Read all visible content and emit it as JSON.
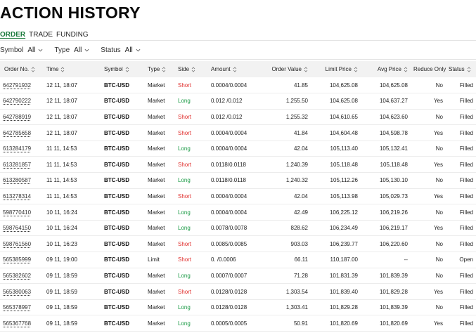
{
  "title": "ACTION HISTORY",
  "tabs": [
    {
      "label": "ORDER",
      "active": true
    },
    {
      "label": "TRADE",
      "active": false
    },
    {
      "label": "FUNDING",
      "active": false
    }
  ],
  "filters": [
    {
      "label": "Symbol",
      "value": "All"
    },
    {
      "label": "Type",
      "value": "All"
    },
    {
      "label": "Status",
      "value": "All"
    }
  ],
  "columns": {
    "order_no": "Order No.",
    "time": "Time",
    "symbol": "Symbol",
    "type": "Type",
    "side": "Side",
    "amount": "Amount",
    "order_value": "Order Value",
    "limit_price": "Limit Price",
    "avg_price": "Avg Price",
    "reduce_only": "Reduce Only",
    "status": "Status"
  },
  "colors": {
    "accent": "#1a7a3c",
    "long": "#1a9a45",
    "short": "#e0312f"
  },
  "rows": [
    {
      "order_no": "642791932",
      "time": "12 11, 18:07",
      "symbol": "BTC-USD",
      "type": "Market",
      "side": "Short",
      "amount": "0.0004/0.0004",
      "order_value": "41.85",
      "limit_price": "104,625.08",
      "avg_price": "104,625.08",
      "reduce_only": "No",
      "status": "Filled"
    },
    {
      "order_no": "642790222",
      "time": "12 11, 18:07",
      "symbol": "BTC-USD",
      "type": "Market",
      "side": "Long",
      "amount": "0.012 /0.012",
      "order_value": "1,255.50",
      "limit_price": "104,625.08",
      "avg_price": "104,637.27",
      "reduce_only": "Yes",
      "status": "Filled"
    },
    {
      "order_no": "642788919",
      "time": "12 11, 18:07",
      "symbol": "BTC-USD",
      "type": "Market",
      "side": "Short",
      "amount": "0.012 /0.012",
      "order_value": "1,255.32",
      "limit_price": "104,610.65",
      "avg_price": "104,623.60",
      "reduce_only": "No",
      "status": "Filled"
    },
    {
      "order_no": "642785658",
      "time": "12 11, 18:07",
      "symbol": "BTC-USD",
      "type": "Market",
      "side": "Short",
      "amount": "0.0004/0.0004",
      "order_value": "41.84",
      "limit_price": "104,604.48",
      "avg_price": "104,598.78",
      "reduce_only": "Yes",
      "status": "Filled"
    },
    {
      "order_no": "613284179",
      "time": "11 11, 14:53",
      "symbol": "BTC-USD",
      "type": "Market",
      "side": "Long",
      "amount": "0.0004/0.0004",
      "order_value": "42.04",
      "limit_price": "105,113.40",
      "avg_price": "105,132.41",
      "reduce_only": "No",
      "status": "Filled"
    },
    {
      "order_no": "613281857",
      "time": "11 11, 14:53",
      "symbol": "BTC-USD",
      "type": "Market",
      "side": "Short",
      "amount": "0.0118/0.0118",
      "order_value": "1,240.39",
      "limit_price": "105,118.48",
      "avg_price": "105,118.48",
      "reduce_only": "Yes",
      "status": "Filled"
    },
    {
      "order_no": "613280587",
      "time": "11 11, 14:53",
      "symbol": "BTC-USD",
      "type": "Market",
      "side": "Long",
      "amount": "0.0118/0.0118",
      "order_value": "1,240.32",
      "limit_price": "105,112.26",
      "avg_price": "105,130.10",
      "reduce_only": "No",
      "status": "Filled"
    },
    {
      "order_no": "613278314",
      "time": "11 11, 14:53",
      "symbol": "BTC-USD",
      "type": "Market",
      "side": "Short",
      "amount": "0.0004/0.0004",
      "order_value": "42.04",
      "limit_price": "105,113.98",
      "avg_price": "105,029.73",
      "reduce_only": "Yes",
      "status": "Filled"
    },
    {
      "order_no": "598770410",
      "time": "10 11, 16:24",
      "symbol": "BTC-USD",
      "type": "Market",
      "side": "Long",
      "amount": "0.0004/0.0004",
      "order_value": "42.49",
      "limit_price": "106,225.12",
      "avg_price": "106,219.26",
      "reduce_only": "No",
      "status": "Filled"
    },
    {
      "order_no": "598764150",
      "time": "10 11, 16:24",
      "symbol": "BTC-USD",
      "type": "Market",
      "side": "Long",
      "amount": "0.0078/0.0078",
      "order_value": "828.62",
      "limit_price": "106,234.49",
      "avg_price": "106,219.17",
      "reduce_only": "Yes",
      "status": "Filled"
    },
    {
      "order_no": "598761560",
      "time": "10 11, 16:23",
      "symbol": "BTC-USD",
      "type": "Market",
      "side": "Short",
      "amount": "0.0085/0.0085",
      "order_value": "903.03",
      "limit_price": "106,239.77",
      "avg_price": "106,220.60",
      "reduce_only": "No",
      "status": "Filled"
    },
    {
      "order_no": "565385999",
      "time": "09 11, 19:00",
      "symbol": "BTC-USD",
      "type": "Limit",
      "side": "Short",
      "amount": "0.    /0.0006",
      "order_value": "66.11",
      "limit_price": "110,187.00",
      "avg_price": "--",
      "reduce_only": "No",
      "status": "Open"
    },
    {
      "order_no": "565382602",
      "time": "09 11, 18:59",
      "symbol": "BTC-USD",
      "type": "Market",
      "side": "Long",
      "amount": "0.0007/0.0007",
      "order_value": "71.28",
      "limit_price": "101,831.39",
      "avg_price": "101,839.39",
      "reduce_only": "No",
      "status": "Filled"
    },
    {
      "order_no": "565380063",
      "time": "09 11, 18:59",
      "symbol": "BTC-USD",
      "type": "Market",
      "side": "Short",
      "amount": "0.0128/0.0128",
      "order_value": "1,303.54",
      "limit_price": "101,839.40",
      "avg_price": "101,829.28",
      "reduce_only": "Yes",
      "status": "Filled"
    },
    {
      "order_no": "565378997",
      "time": "09 11, 18:59",
      "symbol": "BTC-USD",
      "type": "Market",
      "side": "Long",
      "amount": "0.0128/0.0128",
      "order_value": "1,303.41",
      "limit_price": "101,829.28",
      "avg_price": "101,839.39",
      "reduce_only": "No",
      "status": "Filled"
    },
    {
      "order_no": "565367768",
      "time": "09 11, 18:59",
      "symbol": "BTC-USD",
      "type": "Market",
      "side": "Long",
      "amount": "0.0005/0.0005",
      "order_value": "50.91",
      "limit_price": "101,820.69",
      "avg_price": "101,820.69",
      "reduce_only": "Yes",
      "status": "Filled"
    }
  ]
}
